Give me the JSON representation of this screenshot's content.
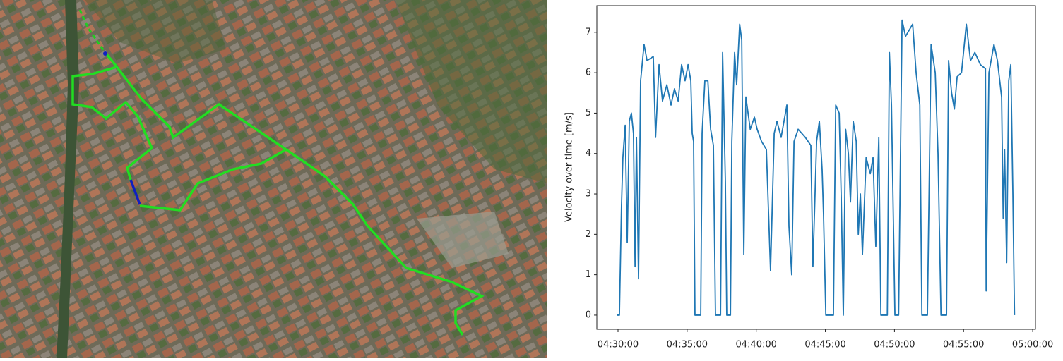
{
  "chart_data": {
    "type": "line",
    "ylabel": "Velocity over time [m/s]",
    "color": "#1f77b4",
    "x": [
      "04:29:54",
      "04:30:06",
      "04:30:15",
      "04:30:21",
      "04:30:31",
      "04:30:40",
      "04:30:49",
      "04:30:58",
      "04:31:07",
      "04:31:14",
      "04:31:20",
      "04:31:29",
      "04:31:38",
      "04:31:53",
      "04:32:06",
      "04:32:33",
      "04:32:43",
      "04:32:58",
      "04:33:13",
      "04:33:32",
      "04:33:50",
      "04:34:05",
      "04:34:21",
      "04:34:36",
      "04:34:51",
      "04:35:04",
      "04:35:16",
      "04:35:22",
      "04:35:28",
      "04:35:34",
      "04:35:59",
      "04:36:05",
      "04:36:17",
      "04:36:30",
      "04:36:42",
      "04:36:54",
      "04:37:03",
      "04:37:25",
      "04:37:34",
      "04:37:46",
      "04:37:52",
      "04:38:08",
      "04:38:14",
      "04:38:26",
      "04:38:35",
      "04:38:48",
      "04:38:57",
      "04:39:06",
      "04:39:15",
      "04:39:34",
      "04:39:52",
      "04:40:04",
      "04:40:23",
      "04:40:44",
      "04:41:02",
      "04:41:18",
      "04:41:30",
      "04:41:48",
      "04:42:13",
      "04:42:22",
      "04:42:34",
      "04:42:44",
      "04:43:02",
      "04:43:33",
      "04:43:57",
      "04:44:06",
      "04:44:22",
      "04:44:34",
      "04:44:46",
      "04:44:52",
      "04:45:02",
      "04:45:35",
      "04:45:45",
      "04:46:00",
      "04:46:09",
      "04:46:18",
      "04:46:28",
      "04:46:40",
      "04:46:49",
      "04:47:01",
      "04:47:14",
      "04:47:23",
      "04:47:32",
      "04:47:41",
      "04:47:57",
      "04:48:15",
      "04:48:27",
      "04:48:39",
      "04:48:52",
      "04:49:01",
      "04:49:29",
      "04:49:38",
      "04:49:47",
      "04:50:02",
      "04:50:18",
      "04:50:33",
      "04:50:48",
      "04:51:19",
      "04:51:34",
      "04:51:50",
      "04:51:59",
      "04:52:23",
      "04:52:39",
      "04:52:57",
      "04:53:09",
      "04:53:22",
      "04:53:46",
      "04:53:55",
      "04:54:08",
      "04:54:20",
      "04:54:32",
      "04:54:51",
      "04:55:12",
      "04:55:30",
      "04:55:49",
      "04:56:13",
      "04:56:35",
      "04:56:38",
      "04:56:50",
      "04:57:12",
      "04:57:27",
      "04:57:45",
      "04:57:52",
      "04:57:58",
      "04:58:07",
      "04:58:16",
      "04:58:25",
      "04:58:34",
      "04:58:41"
    ],
    "values": [
      0,
      0,
      2.7,
      3.9,
      4.7,
      1.8,
      4.8,
      5.0,
      4.5,
      1.2,
      4.4,
      0.9,
      5.8,
      6.7,
      6.3,
      6.4,
      4.4,
      6.2,
      5.3,
      5.7,
      5.2,
      5.6,
      5.3,
      6.2,
      5.8,
      6.2,
      5.8,
      4.5,
      4.3,
      0,
      0,
      4.5,
      5.8,
      5.8,
      4.6,
      4.2,
      0,
      0,
      6.5,
      3.3,
      0,
      0,
      4.3,
      6.5,
      5.7,
      7.2,
      6.8,
      1.5,
      5.4,
      4.6,
      4.9,
      4.6,
      4.3,
      4.1,
      1.1,
      4.5,
      4.8,
      4.4,
      5.2,
      2.2,
      1.0,
      4.3,
      4.6,
      4.4,
      4.2,
      1.2,
      4.3,
      4.8,
      3.6,
      2.5,
      0,
      0,
      5.2,
      5.0,
      2.9,
      0,
      4.6,
      4.0,
      2.8,
      4.8,
      4.3,
      2.0,
      3.0,
      1.5,
      3.9,
      3.5,
      3.9,
      1.7,
      4.4,
      0,
      0,
      6.5,
      5.2,
      0,
      0,
      7.3,
      6.9,
      7.2,
      6.0,
      5.2,
      0,
      0,
      6.7,
      6.0,
      4.0,
      0,
      0,
      6.3,
      5.5,
      5.1,
      5.9,
      6.0,
      7.2,
      6.3,
      6.5,
      6.2,
      6.1,
      0.6,
      6.0,
      6.7,
      6.3,
      5.4,
      2.4,
      4.1,
      1.3,
      5.8,
      6.2,
      3.0,
      0
    ],
    "xlim": [
      "04:28:28",
      "05:00:12"
    ],
    "xticks": [
      "04:30:00",
      "04:35:00",
      "04:40:00",
      "04:45:00",
      "04:50:00",
      "04:55:00",
      "05:00:00"
    ],
    "ylim": [
      -0.35,
      7.66
    ],
    "yticks": [
      0,
      1,
      2,
      3,
      4,
      5,
      6,
      7
    ]
  }
}
